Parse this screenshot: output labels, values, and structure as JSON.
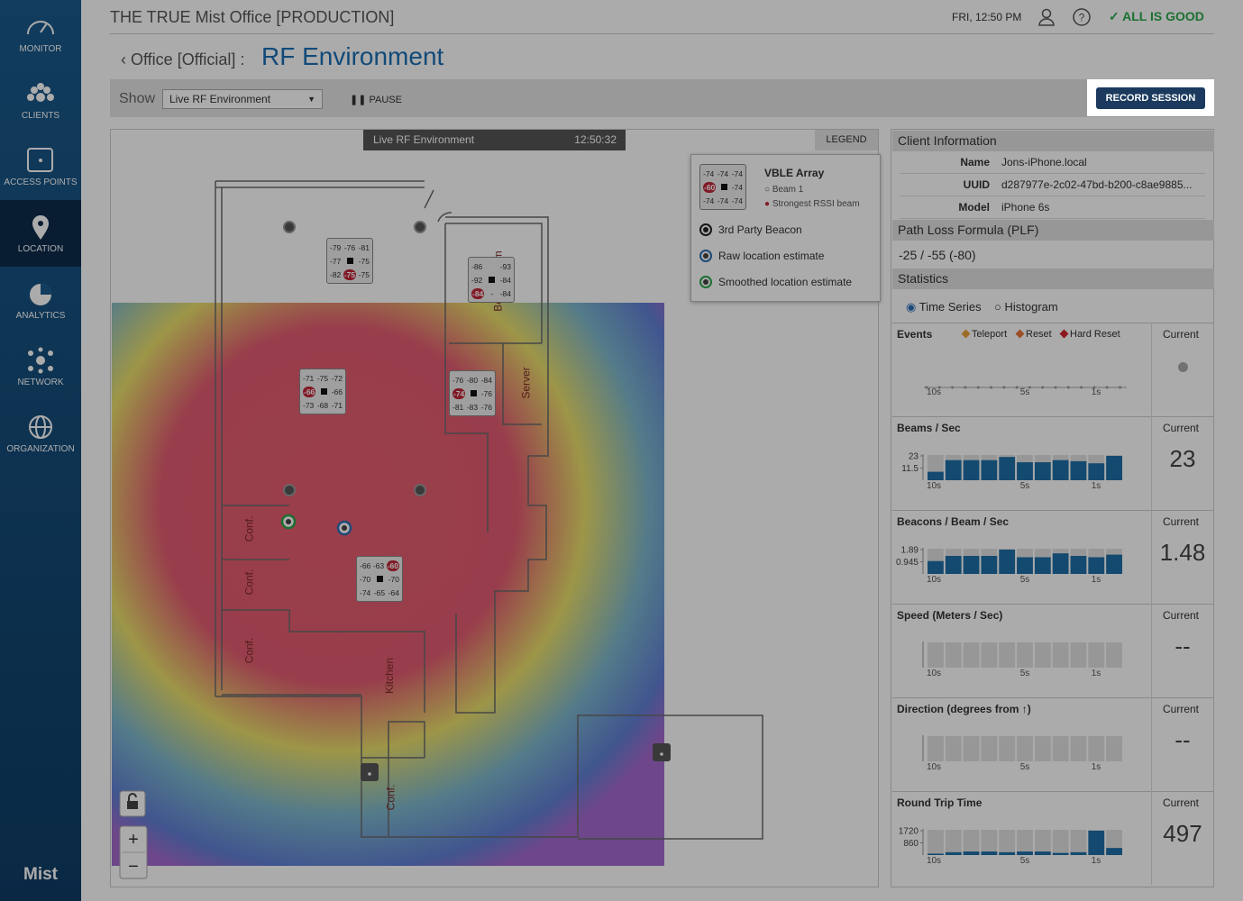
{
  "header": {
    "title": "THE TRUE Mist Office [PRODUCTION]",
    "datetime": "FRI, 12:50 PM",
    "status": "ALL IS GOOD"
  },
  "sidebar": {
    "items": [
      "MONITOR",
      "CLIENTS",
      "ACCESS POINTS",
      "LOCATION",
      "ANALYTICS",
      "NETWORK",
      "ORGANIZATION"
    ],
    "brand": "Mist"
  },
  "breadcrumb": {
    "parent": "Office [Official] :",
    "current": "RF Environment"
  },
  "toolbar": {
    "show_label": "Show",
    "view": "Live RF Environment",
    "pause": "PAUSE",
    "record": "RECORD SESSION"
  },
  "map": {
    "banner_title": "Live RF Environment",
    "banner_time": "12:50:32",
    "legend_button": "LEGEND",
    "legend": {
      "array": {
        "rows": [
          [
            -74,
            -74,
            -74
          ],
          [
            -60,
            -74
          ],
          [
            -74,
            -74,
            -74
          ]
        ]
      },
      "title": "VBLE Array",
      "beam": "Beam 1",
      "strongest": "Strongest RSSI beam",
      "items": [
        "3rd Party Beacon",
        "Raw location estimate",
        "Smoothed location estimate"
      ]
    },
    "rooms": [
      "Board Room",
      "Server",
      "Conf.",
      "Conf.",
      "Conf.",
      "Kitchen",
      "Conf."
    ],
    "arrays": [
      {
        "rows": [
          [
            -79,
            -76,
            -81
          ],
          [
            -77,
            -75
          ],
          [
            -82,
            -75,
            -75
          ]
        ]
      },
      {
        "rows": [
          [
            -86,
            -93
          ],
          [
            -92,
            -84
          ],
          [
            -84,
            "-",
            -84
          ]
        ]
      },
      {
        "rows": [
          [
            -71,
            -75,
            -72
          ],
          [
            -66,
            -66
          ],
          [
            -73,
            -68,
            -71
          ]
        ]
      },
      {
        "rows": [
          [
            -76,
            -80,
            -84
          ],
          [
            -74,
            -76
          ],
          [
            -81,
            -83,
            -76
          ]
        ]
      },
      {
        "rows": [
          [
            -66,
            -63,
            -60
          ],
          [
            -70,
            -70
          ],
          [
            -74,
            -65,
            -64
          ]
        ]
      }
    ]
  },
  "client_info": {
    "title": "Client Information",
    "fields": [
      {
        "label": "Name",
        "value": "Jons-iPhone.local"
      },
      {
        "label": "UUID",
        "value": "d287977e-2c02-47bd-b200-c8ae9885..."
      },
      {
        "label": "Model",
        "value": "iPhone 6s"
      }
    ]
  },
  "plf": {
    "title": "Path Loss Formula (PLF)",
    "value": "-25 / -55 (-80)"
  },
  "statistics": {
    "title": "Statistics",
    "modes": [
      "Time Series",
      "Histogram"
    ],
    "current_label": "Current",
    "xlabels": [
      "10s",
      "5s",
      "1s"
    ],
    "events": {
      "title": "Events",
      "legend": [
        "Teleport",
        "Reset",
        "Hard Reset"
      ]
    },
    "charts": [
      {
        "title": "Beams / Sec",
        "current": "23",
        "ylim": [
          0,
          23
        ],
        "yticks": [
          11.5,
          23
        ],
        "values": [
          8,
          19,
          19,
          19,
          22,
          17,
          17,
          19,
          18,
          16,
          23
        ]
      },
      {
        "title": "Beacons / Beam / Sec",
        "current": "1.48",
        "ylim": [
          0,
          1.89
        ],
        "yticks": [
          0.945,
          1.89
        ],
        "values": [
          1.0,
          1.4,
          1.4,
          1.4,
          1.89,
          1.3,
          1.3,
          1.6,
          1.4,
          1.3,
          1.5
        ]
      },
      {
        "title": "Speed (Meters / Sec)",
        "current": "--"
      },
      {
        "title": "Direction (degrees from ↑)",
        "current": "--"
      },
      {
        "title": "Round Trip Time",
        "current": "497",
        "ylim": [
          0,
          1720
        ],
        "yticks": [
          860,
          1720
        ],
        "values": [
          100,
          200,
          250,
          250,
          200,
          250,
          250,
          150,
          200,
          1720,
          500
        ]
      }
    ]
  }
}
